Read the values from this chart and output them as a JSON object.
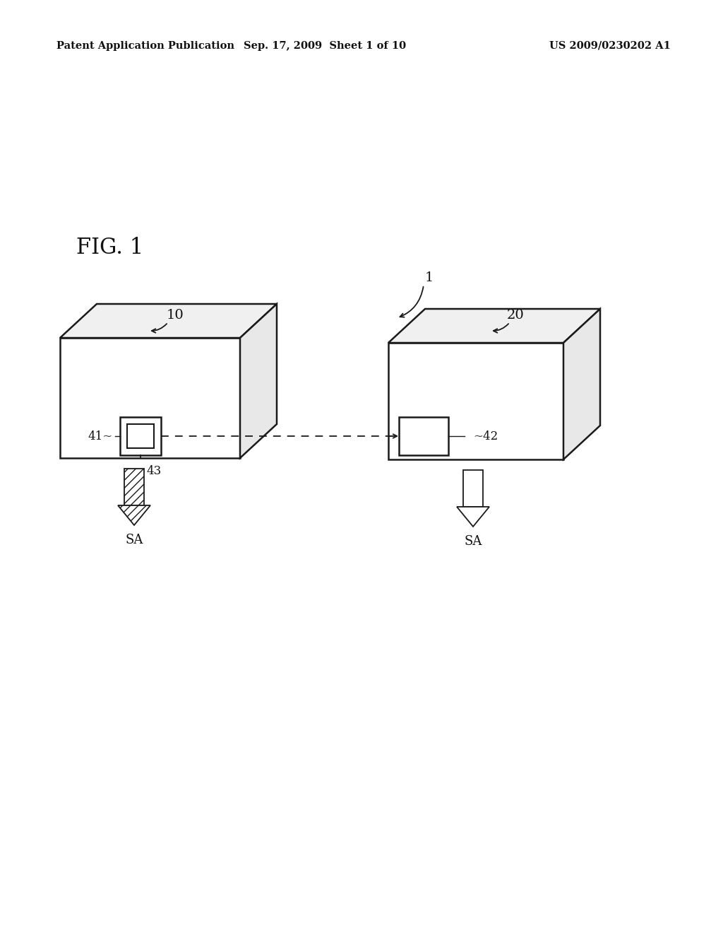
{
  "bg_color": "#ffffff",
  "header_left": "Patent Application Publication",
  "header_mid": "Sep. 17, 2009  Sheet 1 of 10",
  "header_right": "US 2009/0230202 A1",
  "fig_label": "FIG. 1",
  "label_1": "1",
  "label_10": "10",
  "label_20": "20",
  "label_41": "41",
  "label_42": "42",
  "label_43": "43",
  "label_SA_left": "SA",
  "label_SA_right": "SA",
  "line_color": "#1a1a1a",
  "line_width": 1.8,
  "font_size_header": 10.5,
  "font_size_fig": 22,
  "font_size_label": 13
}
